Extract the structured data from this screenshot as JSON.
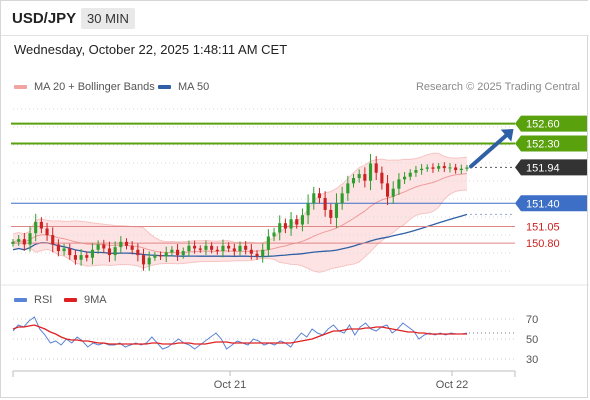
{
  "header": {
    "symbol": "USD/JPY",
    "timeframe": "30 MIN"
  },
  "datetime": "Wednesday, October 22, 2025 1:48:11 AM CET",
  "credit": "Research © 2025 Trading Central",
  "legend": {
    "ma20": {
      "label": "MA 20 + Bollinger Bands",
      "color": "#f4a3a3"
    },
    "ma50": {
      "label": "MA 50",
      "color": "#2f5fa5"
    },
    "rsi": {
      "label": "RSI",
      "color": "#5b84d6"
    },
    "rsi_ma": {
      "label": "9MA",
      "color": "#e02020"
    }
  },
  "colors": {
    "up": "#2e9e2e",
    "down": "#cc2222",
    "target": "#5aa10e",
    "pivot": "#3d6fc7",
    "support": "#e08787",
    "arrow": "#2f5fa5"
  },
  "chart_data": [
    {
      "type": "candlestick",
      "ylim": [
        150.2,
        153.0
      ],
      "x_tick_labels": [
        "Oct 21",
        "Oct 22"
      ],
      "levels": [
        {
          "value": 152.6,
          "label": "152.60",
          "kind": "target"
        },
        {
          "value": 152.3,
          "label": "152.30",
          "kind": "target"
        },
        {
          "value": 151.94,
          "label": "151.94",
          "kind": "last"
        },
        {
          "value": 151.4,
          "label": "151.40",
          "kind": "pivot"
        },
        {
          "value": 151.05,
          "label": "151.05",
          "kind": "support"
        },
        {
          "value": 150.8,
          "label": "150.80",
          "kind": "support"
        }
      ],
      "close": [
        150.82,
        150.86,
        150.78,
        150.95,
        151.12,
        151.02,
        150.92,
        150.78,
        150.68,
        150.72,
        150.62,
        150.55,
        150.62,
        150.58,
        150.7,
        150.78,
        150.72,
        150.62,
        150.74,
        150.82,
        150.76,
        150.7,
        150.62,
        150.48,
        150.58,
        150.62,
        150.6,
        150.66,
        150.7,
        150.62,
        150.68,
        150.76,
        150.72,
        150.7,
        150.76,
        150.7,
        150.68,
        150.76,
        150.72,
        150.68,
        150.76,
        150.7,
        150.64,
        150.6,
        150.7,
        150.9,
        150.96,
        151.1,
        151.02,
        151.16,
        151.08,
        151.22,
        151.4,
        151.55,
        151.48,
        151.3,
        151.18,
        151.4,
        151.55,
        151.7,
        151.78,
        151.84,
        151.74,
        152.0,
        151.86,
        151.7,
        151.5,
        151.62,
        151.76,
        151.8,
        151.86,
        151.9,
        151.92,
        151.94,
        151.92,
        151.96,
        151.93,
        151.94,
        151.9,
        151.92,
        151.94
      ]
    },
    {
      "type": "line",
      "ylim": [
        20,
        80
      ],
      "y_ticks": [
        70,
        50,
        30
      ],
      "series": [
        {
          "name": "RSI",
          "values": [
            58,
            64,
            62,
            68,
            72,
            60,
            54,
            46,
            48,
            44,
            50,
            46,
            52,
            48,
            42,
            46,
            44,
            46,
            44,
            44,
            46,
            42,
            44,
            46,
            44,
            46,
            52,
            46,
            40,
            42,
            46,
            50,
            46,
            44,
            40,
            44,
            48,
            52,
            56,
            50,
            40,
            44,
            48,
            46,
            44,
            50,
            48,
            44,
            46,
            44,
            48,
            46,
            42,
            50,
            56,
            52,
            60,
            56,
            54,
            60,
            64,
            58,
            56,
            64,
            54,
            62,
            66,
            60,
            58,
            62,
            64,
            56,
            60,
            66,
            62,
            58,
            50,
            54,
            56,
            54,
            56,
            54,
            56,
            55,
            55,
            56
          ]
        },
        {
          "name": "9MA",
          "values": [
            60,
            62,
            62,
            63,
            64,
            62,
            60,
            57,
            55,
            52,
            50,
            49,
            49,
            48,
            48,
            47,
            46,
            46,
            45,
            45,
            45,
            45,
            45,
            45,
            45,
            45,
            46,
            46,
            45,
            45,
            45,
            46,
            46,
            46,
            45,
            45,
            45,
            46,
            47,
            47,
            47,
            46,
            46,
            46,
            46,
            46,
            46,
            46,
            46,
            46,
            46,
            46,
            46,
            47,
            48,
            49,
            50,
            52,
            54,
            56,
            58,
            58,
            59,
            60,
            60,
            60,
            61,
            61,
            62,
            62,
            61,
            60,
            59,
            58,
            57,
            57,
            56,
            56,
            55,
            55,
            55,
            55,
            55,
            55,
            55,
            55
          ]
        }
      ]
    }
  ]
}
